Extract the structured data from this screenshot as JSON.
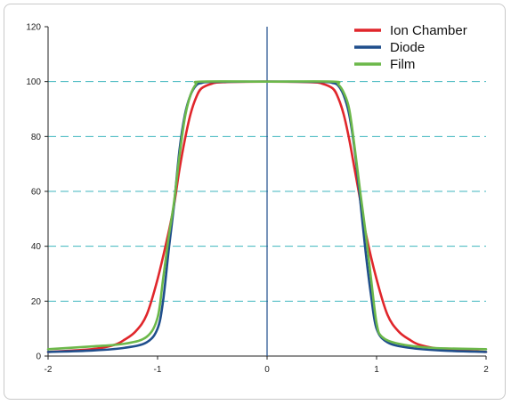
{
  "chart_data": {
    "type": "line",
    "title": "",
    "xlabel": "",
    "ylabel": "",
    "xlim": [
      -2,
      2
    ],
    "ylim": [
      0,
      120
    ],
    "x_ticks": [
      "-2",
      "-1",
      "0",
      "1",
      "2"
    ],
    "y_ticks": [
      "0",
      "20",
      "40",
      "60",
      "80",
      "100",
      "120"
    ],
    "grid": "horizontal dashed at 20, 40, 60, 80, 100",
    "legend_position": "top-right",
    "series": [
      {
        "name": "Ion Chamber",
        "color": "#e0262b",
        "points": [
          [
            -2,
            1.5
          ],
          [
            -1.6,
            2.5
          ],
          [
            -1.4,
            4
          ],
          [
            -1.3,
            6
          ],
          [
            -1.2,
            9
          ],
          [
            -1.1,
            15
          ],
          [
            -1.0,
            28
          ],
          [
            -0.9,
            45
          ],
          [
            -0.85,
            55
          ],
          [
            -0.8,
            68
          ],
          [
            -0.75,
            79
          ],
          [
            -0.7,
            88
          ],
          [
            -0.65,
            94
          ],
          [
            -0.6,
            97.5
          ],
          [
            -0.5,
            99.3
          ],
          [
            -0.4,
            99.8
          ],
          [
            0,
            100
          ],
          [
            0.4,
            99.8
          ],
          [
            0.5,
            99.3
          ],
          [
            0.6,
            97.5
          ],
          [
            0.65,
            94
          ],
          [
            0.7,
            88
          ],
          [
            0.75,
            79
          ],
          [
            0.8,
            68
          ],
          [
            0.85,
            57
          ],
          [
            0.9,
            45
          ],
          [
            1.0,
            28
          ],
          [
            1.1,
            15
          ],
          [
            1.2,
            9
          ],
          [
            1.3,
            6
          ],
          [
            1.4,
            4
          ],
          [
            1.6,
            2.5
          ],
          [
            2,
            1.5
          ]
        ]
      },
      {
        "name": "Diode",
        "color": "#1f4e8c",
        "points": [
          [
            -2,
            1.5
          ],
          [
            -1.6,
            2
          ],
          [
            -1.3,
            3
          ],
          [
            -1.1,
            5
          ],
          [
            -1.0,
            10
          ],
          [
            -0.95,
            20
          ],
          [
            -0.9,
            38
          ],
          [
            -0.85,
            55
          ],
          [
            -0.8,
            75
          ],
          [
            -0.75,
            88
          ],
          [
            -0.7,
            95
          ],
          [
            -0.65,
            98.5
          ],
          [
            -0.6,
            99.5
          ],
          [
            -0.5,
            99.9
          ],
          [
            0,
            100
          ],
          [
            0.5,
            99.9
          ],
          [
            0.6,
            99.5
          ],
          [
            0.65,
            98.5
          ],
          [
            0.7,
            95
          ],
          [
            0.75,
            88
          ],
          [
            0.8,
            75
          ],
          [
            0.85,
            57
          ],
          [
            0.9,
            38
          ],
          [
            0.95,
            22
          ],
          [
            1.0,
            10
          ],
          [
            1.1,
            5
          ],
          [
            1.3,
            3
          ],
          [
            1.6,
            2
          ],
          [
            2,
            1.5
          ]
        ]
      },
      {
        "name": "Film",
        "color": "#6cb84a",
        "points": [
          [
            -2,
            2.5
          ],
          [
            -1.6,
            3.5
          ],
          [
            -1.3,
            4.5
          ],
          [
            -1.1,
            7
          ],
          [
            -1.0,
            14
          ],
          [
            -0.95,
            28
          ],
          [
            -0.9,
            43
          ],
          [
            -0.85,
            56
          ],
          [
            -0.8,
            73
          ],
          [
            -0.75,
            87
          ],
          [
            -0.7,
            95
          ],
          [
            -0.65,
            99
          ],
          [
            -0.6,
            100
          ],
          [
            0,
            100
          ],
          [
            0.6,
            100
          ],
          [
            0.65,
            99
          ],
          [
            0.7,
            96
          ],
          [
            0.75,
            90
          ],
          [
            0.8,
            76
          ],
          [
            0.85,
            60
          ],
          [
            0.9,
            45
          ],
          [
            0.95,
            28
          ],
          [
            1.0,
            12
          ],
          [
            1.05,
            7
          ],
          [
            1.2,
            4.5
          ],
          [
            1.5,
            3
          ],
          [
            2,
            2.5
          ]
        ]
      }
    ]
  }
}
